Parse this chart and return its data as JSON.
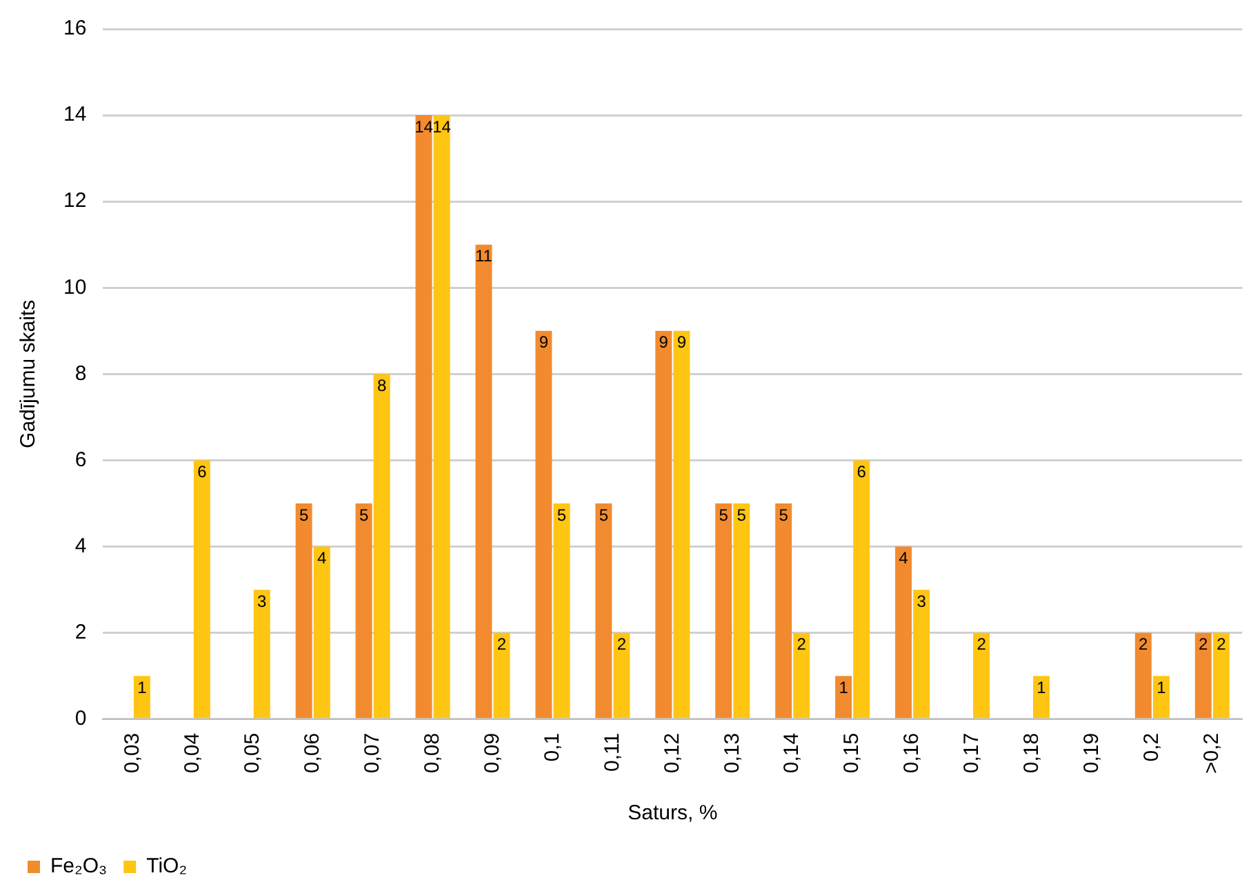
{
  "chart_data": {
    "type": "bar",
    "xlabel": "Saturs, %",
    "ylabel": "Gadījumu skaits",
    "categories": [
      "0,03",
      "0,04",
      "0,05",
      "0,06",
      "0,07",
      "0,08",
      "0,09",
      "0,1",
      "0,11",
      "0,12",
      "0,13",
      "0,14",
      "0,15",
      "0,16",
      "0,17",
      "0,18",
      "0,19",
      "0,2",
      ">0,2"
    ],
    "series": [
      {
        "name": "Fe₂O₃",
        "color": "#f28b2f",
        "values": [
          0,
          0,
          0,
          5,
          5,
          14,
          11,
          9,
          5,
          9,
          5,
          5,
          1,
          4,
          0,
          0,
          0,
          2,
          2
        ],
        "value_labels": [
          null,
          null,
          null,
          "5",
          "5",
          "14",
          "11",
          "9",
          "5",
          "9",
          "5",
          "5",
          "1",
          "4",
          null,
          null,
          null,
          "2",
          "2"
        ]
      },
      {
        "name": "TiO₂",
        "color": "#ffc513",
        "values": [
          1,
          6,
          3,
          4,
          8,
          14,
          2,
          5,
          2,
          9,
          5,
          2,
          6,
          3,
          2,
          1,
          0,
          1,
          2
        ],
        "value_labels": [
          "1",
          "6",
          "3",
          "4",
          "8",
          "14",
          "2",
          "5",
          "2",
          "9",
          "5",
          "2",
          "6",
          "3",
          "2",
          "1",
          null,
          "1",
          "2"
        ]
      }
    ],
    "ylim": [
      0,
      16
    ],
    "yticks": [
      0,
      2,
      4,
      6,
      8,
      10,
      12,
      14,
      16
    ],
    "grid": "y",
    "legend": "bottom left"
  }
}
